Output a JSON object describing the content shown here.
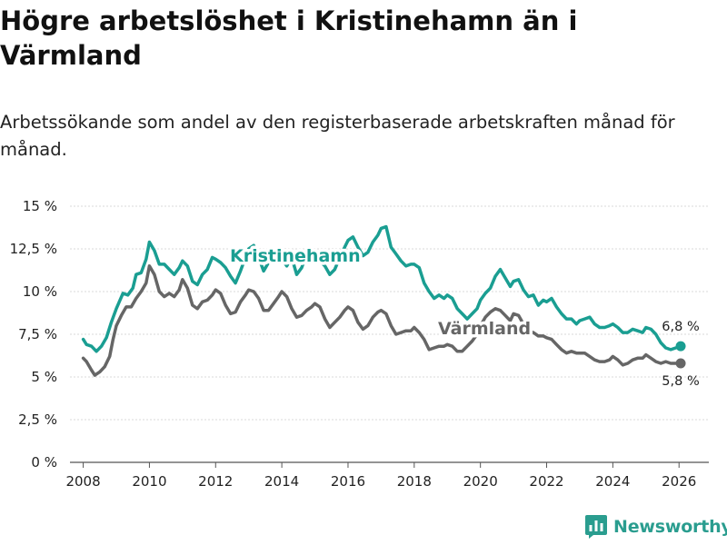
{
  "title": "Högre arbetslöshet i Kristinehamn än i Värmland",
  "subtitle": "Arbetssökande som andel av den registerbaserade arbetskraften månad för månad.",
  "brand": {
    "name": "Newsworthy",
    "color": "#2a9d8f"
  },
  "chart_data": {
    "type": "line",
    "title": "Högre arbetslöshet i Kristinehamn än i Värmland",
    "xlabel": "",
    "ylabel": "",
    "xlim": [
      2007.6,
      2026.9
    ],
    "ylim": [
      0,
      15
    ],
    "grid": true,
    "y_ticks": [
      0,
      2.5,
      5,
      7.5,
      10,
      12.5,
      15
    ],
    "y_tick_labels": [
      "0 %",
      "2,5 %",
      "5 %",
      "7,5 %",
      "10 %",
      "12,5 %",
      "15 %"
    ],
    "x_ticks": [
      2008,
      2010,
      2012,
      2014,
      2016,
      2018,
      2020,
      2022,
      2024,
      2026
    ],
    "x_tick_labels": [
      "2008",
      "2010",
      "2012",
      "2014",
      "2016",
      "2018",
      "2020",
      "2022",
      "2024",
      "2026"
    ],
    "series": [
      {
        "name": "Kristinehamn",
        "color": "#1a9e92",
        "end_label": "6,8 %",
        "points": [
          [
            2008.0,
            7.2
          ],
          [
            2008.1,
            6.9
          ],
          [
            2008.25,
            6.8
          ],
          [
            2008.4,
            6.5
          ],
          [
            2008.55,
            6.8
          ],
          [
            2008.7,
            7.3
          ],
          [
            2008.85,
            8.2
          ],
          [
            2009.0,
            9.0
          ],
          [
            2009.2,
            9.9
          ],
          [
            2009.35,
            9.8
          ],
          [
            2009.5,
            10.2
          ],
          [
            2009.6,
            11.0
          ],
          [
            2009.75,
            11.1
          ],
          [
            2009.9,
            11.9
          ],
          [
            2010.0,
            12.9
          ],
          [
            2010.15,
            12.4
          ],
          [
            2010.3,
            11.6
          ],
          [
            2010.45,
            11.6
          ],
          [
            2010.6,
            11.3
          ],
          [
            2010.75,
            11.0
          ],
          [
            2010.9,
            11.4
          ],
          [
            2011.0,
            11.8
          ],
          [
            2011.15,
            11.5
          ],
          [
            2011.3,
            10.6
          ],
          [
            2011.45,
            10.4
          ],
          [
            2011.6,
            11.0
          ],
          [
            2011.75,
            11.3
          ],
          [
            2011.9,
            12.0
          ],
          [
            2012.0,
            11.9
          ],
          [
            2012.15,
            11.7
          ],
          [
            2012.3,
            11.4
          ],
          [
            2012.45,
            10.9
          ],
          [
            2012.6,
            10.5
          ],
          [
            2012.75,
            11.2
          ],
          [
            2012.9,
            12.0
          ],
          [
            2013.0,
            12.5
          ],
          [
            2013.15,
            12.7
          ],
          [
            2013.3,
            12.0
          ],
          [
            2013.45,
            11.2
          ],
          [
            2013.6,
            11.7
          ],
          [
            2013.75,
            12.3
          ],
          [
            2013.9,
            12.4
          ],
          [
            2014.0,
            11.9
          ],
          [
            2014.15,
            11.5
          ],
          [
            2014.3,
            12.0
          ],
          [
            2014.45,
            11.0
          ],
          [
            2014.6,
            11.4
          ],
          [
            2014.75,
            12.2
          ],
          [
            2014.9,
            12.3
          ],
          [
            2015.0,
            12.0
          ],
          [
            2015.15,
            11.8
          ],
          [
            2015.3,
            11.5
          ],
          [
            2015.45,
            11.0
          ],
          [
            2015.6,
            11.3
          ],
          [
            2015.75,
            12.0
          ],
          [
            2015.9,
            12.6
          ],
          [
            2016.0,
            13.0
          ],
          [
            2016.15,
            13.2
          ],
          [
            2016.3,
            12.6
          ],
          [
            2016.45,
            12.1
          ],
          [
            2016.6,
            12.3
          ],
          [
            2016.75,
            12.9
          ],
          [
            2016.9,
            13.3
          ],
          [
            2017.0,
            13.7
          ],
          [
            2017.15,
            13.8
          ],
          [
            2017.3,
            12.6
          ],
          [
            2017.45,
            12.2
          ],
          [
            2017.6,
            11.8
          ],
          [
            2017.75,
            11.5
          ],
          [
            2017.9,
            11.6
          ],
          [
            2018.0,
            11.6
          ],
          [
            2018.15,
            11.4
          ],
          [
            2018.3,
            10.5
          ],
          [
            2018.45,
            10.0
          ],
          [
            2018.6,
            9.6
          ],
          [
            2018.75,
            9.8
          ],
          [
            2018.9,
            9.6
          ],
          [
            2019.0,
            9.8
          ],
          [
            2019.15,
            9.6
          ],
          [
            2019.3,
            9.0
          ],
          [
            2019.45,
            8.7
          ],
          [
            2019.6,
            8.4
          ],
          [
            2019.75,
            8.7
          ],
          [
            2019.9,
            9.0
          ],
          [
            2020.0,
            9.5
          ],
          [
            2020.15,
            9.9
          ],
          [
            2020.3,
            10.2
          ],
          [
            2020.45,
            10.9
          ],
          [
            2020.6,
            11.3
          ],
          [
            2020.75,
            10.8
          ],
          [
            2020.9,
            10.3
          ],
          [
            2021.0,
            10.6
          ],
          [
            2021.15,
            10.7
          ],
          [
            2021.3,
            10.1
          ],
          [
            2021.45,
            9.7
          ],
          [
            2021.6,
            9.8
          ],
          [
            2021.75,
            9.2
          ],
          [
            2021.9,
            9.5
          ],
          [
            2022.0,
            9.4
          ],
          [
            2022.15,
            9.6
          ],
          [
            2022.3,
            9.1
          ],
          [
            2022.45,
            8.7
          ],
          [
            2022.6,
            8.4
          ],
          [
            2022.75,
            8.4
          ],
          [
            2022.9,
            8.1
          ],
          [
            2023.0,
            8.3
          ],
          [
            2023.15,
            8.4
          ],
          [
            2023.3,
            8.5
          ],
          [
            2023.45,
            8.1
          ],
          [
            2023.6,
            7.9
          ],
          [
            2023.75,
            7.9
          ],
          [
            2023.9,
            8.0
          ],
          [
            2024.0,
            8.1
          ],
          [
            2024.15,
            7.9
          ],
          [
            2024.3,
            7.6
          ],
          [
            2024.45,
            7.6
          ],
          [
            2024.6,
            7.8
          ],
          [
            2024.75,
            7.7
          ],
          [
            2024.9,
            7.6
          ],
          [
            2025.0,
            7.9
          ],
          [
            2025.15,
            7.8
          ],
          [
            2025.3,
            7.5
          ],
          [
            2025.45,
            7.0
          ],
          [
            2025.6,
            6.7
          ],
          [
            2025.75,
            6.6
          ],
          [
            2025.9,
            6.7
          ],
          [
            2026.05,
            6.8
          ]
        ]
      },
      {
        "name": "Värmland",
        "color": "#666666",
        "end_label": "5,8 %",
        "points": [
          [
            2008.0,
            6.1
          ],
          [
            2008.1,
            5.9
          ],
          [
            2008.25,
            5.4
          ],
          [
            2008.35,
            5.1
          ],
          [
            2008.5,
            5.3
          ],
          [
            2008.65,
            5.6
          ],
          [
            2008.8,
            6.2
          ],
          [
            2008.9,
            7.2
          ],
          [
            2009.0,
            8.0
          ],
          [
            2009.15,
            8.6
          ],
          [
            2009.3,
            9.1
          ],
          [
            2009.45,
            9.1
          ],
          [
            2009.6,
            9.6
          ],
          [
            2009.75,
            10.0
          ],
          [
            2009.9,
            10.5
          ],
          [
            2010.0,
            11.5
          ],
          [
            2010.15,
            11.0
          ],
          [
            2010.3,
            10.0
          ],
          [
            2010.45,
            9.7
          ],
          [
            2010.6,
            9.9
          ],
          [
            2010.75,
            9.7
          ],
          [
            2010.9,
            10.1
          ],
          [
            2011.0,
            10.7
          ],
          [
            2011.15,
            10.2
          ],
          [
            2011.3,
            9.2
          ],
          [
            2011.45,
            9.0
          ],
          [
            2011.6,
            9.4
          ],
          [
            2011.75,
            9.5
          ],
          [
            2011.9,
            9.8
          ],
          [
            2012.0,
            10.1
          ],
          [
            2012.15,
            9.9
          ],
          [
            2012.3,
            9.2
          ],
          [
            2012.45,
            8.7
          ],
          [
            2012.6,
            8.8
          ],
          [
            2012.75,
            9.4
          ],
          [
            2012.9,
            9.8
          ],
          [
            2013.0,
            10.1
          ],
          [
            2013.15,
            10.0
          ],
          [
            2013.3,
            9.6
          ],
          [
            2013.45,
            8.9
          ],
          [
            2013.6,
            8.9
          ],
          [
            2013.75,
            9.3
          ],
          [
            2013.9,
            9.7
          ],
          [
            2014.0,
            10.0
          ],
          [
            2014.15,
            9.7
          ],
          [
            2014.3,
            9.0
          ],
          [
            2014.45,
            8.5
          ],
          [
            2014.6,
            8.6
          ],
          [
            2014.75,
            8.9
          ],
          [
            2014.9,
            9.1
          ],
          [
            2015.0,
            9.3
          ],
          [
            2015.15,
            9.1
          ],
          [
            2015.3,
            8.4
          ],
          [
            2015.45,
            7.9
          ],
          [
            2015.6,
            8.2
          ],
          [
            2015.75,
            8.5
          ],
          [
            2015.9,
            8.9
          ],
          [
            2016.0,
            9.1
          ],
          [
            2016.15,
            8.9
          ],
          [
            2016.3,
            8.2
          ],
          [
            2016.45,
            7.8
          ],
          [
            2016.6,
            8.0
          ],
          [
            2016.75,
            8.5
          ],
          [
            2016.9,
            8.8
          ],
          [
            2017.0,
            8.9
          ],
          [
            2017.15,
            8.7
          ],
          [
            2017.3,
            8.0
          ],
          [
            2017.45,
            7.5
          ],
          [
            2017.6,
            7.6
          ],
          [
            2017.75,
            7.7
          ],
          [
            2017.9,
            7.7
          ],
          [
            2018.0,
            7.9
          ],
          [
            2018.15,
            7.6
          ],
          [
            2018.3,
            7.2
          ],
          [
            2018.45,
            6.6
          ],
          [
            2018.6,
            6.7
          ],
          [
            2018.75,
            6.8
          ],
          [
            2018.9,
            6.8
          ],
          [
            2019.0,
            6.9
          ],
          [
            2019.15,
            6.8
          ],
          [
            2019.3,
            6.5
          ],
          [
            2019.45,
            6.5
          ],
          [
            2019.6,
            6.8
          ],
          [
            2019.75,
            7.1
          ],
          [
            2019.9,
            7.5
          ],
          [
            2020.0,
            8.0
          ],
          [
            2020.15,
            8.5
          ],
          [
            2020.3,
            8.8
          ],
          [
            2020.45,
            9.0
          ],
          [
            2020.6,
            8.9
          ],
          [
            2020.75,
            8.6
          ],
          [
            2020.9,
            8.3
          ],
          [
            2021.0,
            8.7
          ],
          [
            2021.15,
            8.6
          ],
          [
            2021.3,
            8.1
          ],
          [
            2021.45,
            7.7
          ],
          [
            2021.6,
            7.6
          ],
          [
            2021.75,
            7.4
          ],
          [
            2021.9,
            7.4
          ],
          [
            2022.0,
            7.3
          ],
          [
            2022.15,
            7.2
          ],
          [
            2022.3,
            6.9
          ],
          [
            2022.45,
            6.6
          ],
          [
            2022.6,
            6.4
          ],
          [
            2022.75,
            6.5
          ],
          [
            2022.9,
            6.4
          ],
          [
            2023.0,
            6.4
          ],
          [
            2023.15,
            6.4
          ],
          [
            2023.3,
            6.2
          ],
          [
            2023.45,
            6.0
          ],
          [
            2023.6,
            5.9
          ],
          [
            2023.75,
            5.9
          ],
          [
            2023.9,
            6.0
          ],
          [
            2024.0,
            6.2
          ],
          [
            2024.15,
            6.0
          ],
          [
            2024.3,
            5.7
          ],
          [
            2024.45,
            5.8
          ],
          [
            2024.6,
            6.0
          ],
          [
            2024.75,
            6.1
          ],
          [
            2024.9,
            6.1
          ],
          [
            2025.0,
            6.3
          ],
          [
            2025.15,
            6.1
          ],
          [
            2025.3,
            5.9
          ],
          [
            2025.45,
            5.8
          ],
          [
            2025.6,
            5.9
          ],
          [
            2025.75,
            5.8
          ],
          [
            2025.9,
            5.8
          ],
          [
            2026.05,
            5.8
          ]
        ]
      }
    ]
  }
}
